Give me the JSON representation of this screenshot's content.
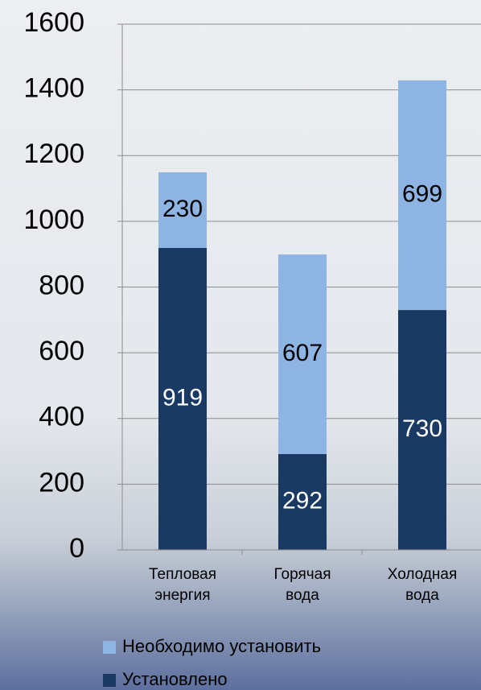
{
  "chart_data": {
    "type": "stacked_bar",
    "categories": [
      "Тепловая энергия",
      "Горячая вода",
      "Холодная вода"
    ],
    "series": [
      {
        "name": "Установлено",
        "color": "#1b3a63",
        "label_color": "#ffffff",
        "values": [
          919,
          292,
          730
        ]
      },
      {
        "name": "Необходимо установить",
        "color": "#8db4e3",
        "label_color": "#000000",
        "values": [
          230,
          607,
          699
        ]
      }
    ],
    "ylim": [
      0,
      1600
    ],
    "yticks": [
      0,
      200,
      400,
      600,
      800,
      1000,
      1200,
      1400,
      1600
    ],
    "grid": true
  }
}
